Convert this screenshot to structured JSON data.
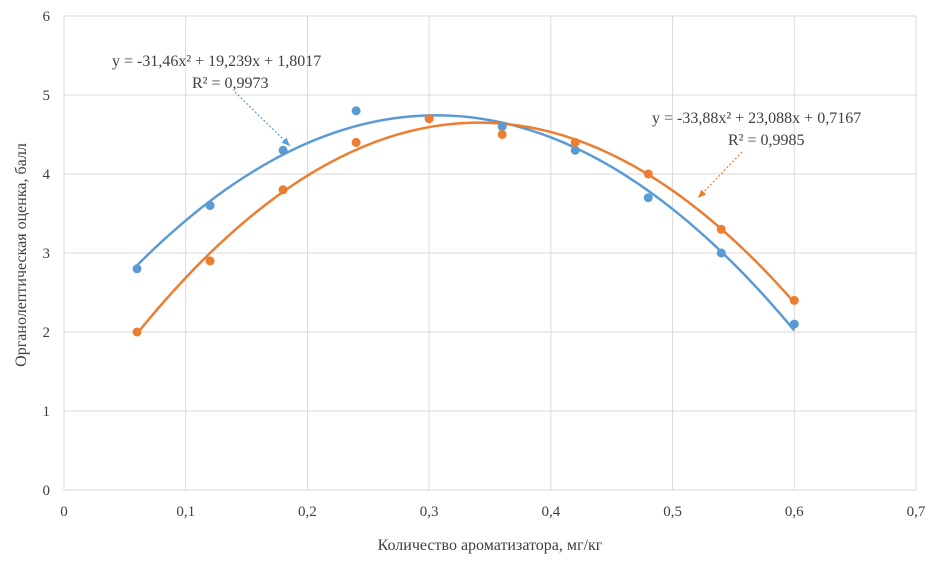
{
  "chart_data": {
    "type": "scatter",
    "title": "",
    "xlabel": "Количество ароматизатора, мг/кг",
    "ylabel": "Органолептическая оценка, балл",
    "xlim": [
      0,
      0.7
    ],
    "ylim": [
      0,
      6
    ],
    "x_ticks": [
      0,
      0.1,
      0.2,
      0.3,
      0.4,
      0.5,
      0.6,
      0.7
    ],
    "y_ticks": [
      0,
      1,
      2,
      3,
      4,
      5,
      6
    ],
    "x_tick_labels": [
      "0",
      "0,1",
      "0,2",
      "0,3",
      "0,4",
      "0,5",
      "0,6",
      "0,7"
    ],
    "y_tick_labels": [
      "0",
      "1",
      "2",
      "3",
      "4",
      "5",
      "6"
    ],
    "grid": "vertical and horizontal",
    "legend": "none",
    "series": [
      {
        "color": "#5b9bd5",
        "x": [
          0.06,
          0.12,
          0.18,
          0.24,
          0.3,
          0.36,
          0.42,
          0.48,
          0.54,
          0.6
        ],
        "y": [
          2.8,
          3.6,
          4.3,
          4.8,
          4.7,
          4.6,
          4.3,
          3.7,
          3.0,
          2.1
        ],
        "trendline": {
          "a": -31.46,
          "b": 19.239,
          "c": 1.8017
        },
        "equation": "y = -31,46x² + 19,239x + 1,8017",
        "r2": "R² = 0,9973"
      },
      {
        "color": "#ed7d31",
        "x": [
          0.06,
          0.12,
          0.18,
          0.24,
          0.3,
          0.36,
          0.42,
          0.48,
          0.54,
          0.6
        ],
        "y": [
          2.0,
          2.9,
          3.8,
          4.4,
          4.7,
          4.5,
          4.4,
          4.0,
          3.3,
          2.4
        ],
        "trendline": {
          "a": -33.88,
          "b": 23.088,
          "c": 0.7167
        },
        "equation": "y = -33,88x² + 23,088x + 0,7167",
        "r2": "R² = 0,9985"
      }
    ]
  }
}
